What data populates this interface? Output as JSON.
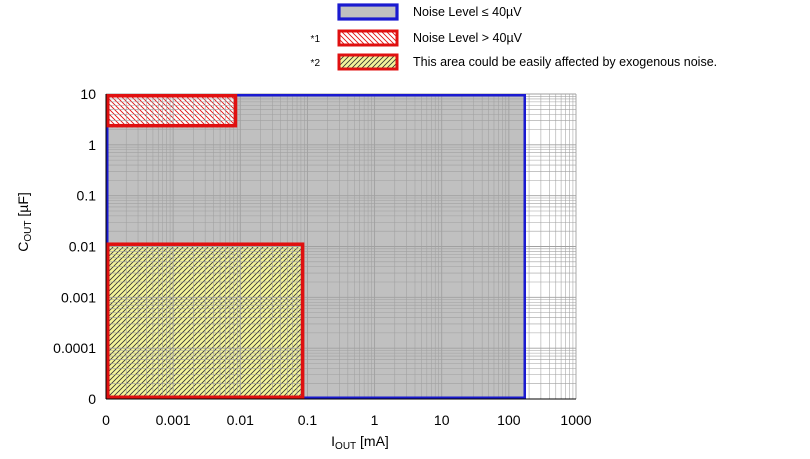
{
  "chart_data": {
    "type": "area",
    "title": "",
    "xlabel": {
      "main": "I",
      "sub": "OUT",
      "unit": " [mA]"
    },
    "ylabel": {
      "main": "C",
      "sub": "OUT",
      "unit": " [µF]"
    },
    "x_scale": "log",
    "y_scale": "log",
    "x_ticks": [
      {
        "value": 0,
        "label": "0"
      },
      {
        "value": 0.001,
        "label": "0.001"
      },
      {
        "value": 0.01,
        "label": "0.01"
      },
      {
        "value": 0.1,
        "label": "0.1"
      },
      {
        "value": 1,
        "label": "1"
      },
      {
        "value": 10,
        "label": "10"
      },
      {
        "value": 100,
        "label": "100"
      },
      {
        "value": 1000,
        "label": "1000"
      }
    ],
    "y_ticks": [
      {
        "value": 0,
        "label": "0"
      },
      {
        "value": 0.0001,
        "label": "0.0001"
      },
      {
        "value": 0.001,
        "label": "0.001"
      },
      {
        "value": 0.01,
        "label": "0.01"
      },
      {
        "value": 0.1,
        "label": "0.1"
      },
      {
        "value": 1,
        "label": "1"
      },
      {
        "value": 10,
        "label": "10"
      }
    ],
    "grid": true,
    "legend_position": "top-right",
    "regions": [
      {
        "legend_label": "Noise Level ≤ 40µV",
        "note": "",
        "fill": "#c0c0c0",
        "stroke": "#1a1ad0",
        "hatch": "none",
        "x_range": [
          0,
          180
        ],
        "y_range": [
          0,
          10
        ]
      },
      {
        "legend_label": "Noise Level > 40µV",
        "note": "*1",
        "fill": "#ffffff",
        "stroke": "#e01010",
        "hatch": "red-backslash",
        "x_range": [
          0,
          0.009
        ],
        "y_range": [
          2.2,
          10
        ]
      },
      {
        "legend_label": "This area could be easily affected by exogenous noise.",
        "note": "*2",
        "fill": "#f4f49a",
        "stroke": "#e01010",
        "hatch": "dark-slash",
        "x_range": [
          0,
          0.09
        ],
        "y_range": [
          0,
          0.012
        ]
      }
    ],
    "colors": {
      "grid": "#a0a0a0",
      "safe_fill": "#c0c0c0",
      "safe_border": "#1a1ad0",
      "red_border": "#e01010",
      "yellow_fill": "#f4f49a"
    }
  }
}
